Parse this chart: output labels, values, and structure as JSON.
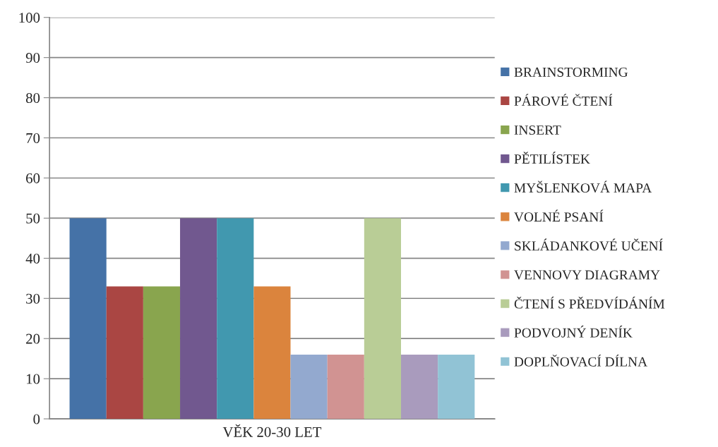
{
  "chart_data": {
    "type": "bar",
    "categories": [
      "VĚK 20-30 LET"
    ],
    "series": [
      {
        "name": "BRAINSTORMING",
        "color": "#4572a7",
        "values": [
          50
        ]
      },
      {
        "name": "PÁROVÉ ČTENÍ",
        "color": "#aa4643",
        "values": [
          33
        ]
      },
      {
        "name": "INSERT",
        "color": "#89a54e",
        "values": [
          33
        ]
      },
      {
        "name": "PĚTILÍSTEK",
        "color": "#71588f",
        "values": [
          50
        ]
      },
      {
        "name": "MYŠLENKOVÁ MAPA",
        "color": "#4198af",
        "values": [
          50
        ]
      },
      {
        "name": "VOLNÉ PSANÍ",
        "color": "#db843d",
        "values": [
          33
        ]
      },
      {
        "name": "SKLÁDANKOVÉ UČENÍ",
        "color": "#93a9cf",
        "values": [
          16
        ]
      },
      {
        "name": "VENNOVY DIAGRAMY",
        "color": "#d19392",
        "values": [
          16
        ]
      },
      {
        "name": "ČTENÍ S PŘEDVÍDÁNÍM",
        "color": "#b9cd96",
        "values": [
          50
        ]
      },
      {
        "name": "PODVOJNÝ DENÍK",
        "color": "#a99bbd",
        "values": [
          16
        ]
      },
      {
        "name": "DOPLŇOVACÍ DÍLNA",
        "color": "#91c3d5",
        "values": [
          16
        ]
      }
    ],
    "ylim": [
      0,
      100
    ],
    "yticks": [
      0,
      10,
      20,
      30,
      40,
      50,
      60,
      70,
      80,
      90,
      100
    ],
    "grid": "y",
    "legend": "right"
  }
}
